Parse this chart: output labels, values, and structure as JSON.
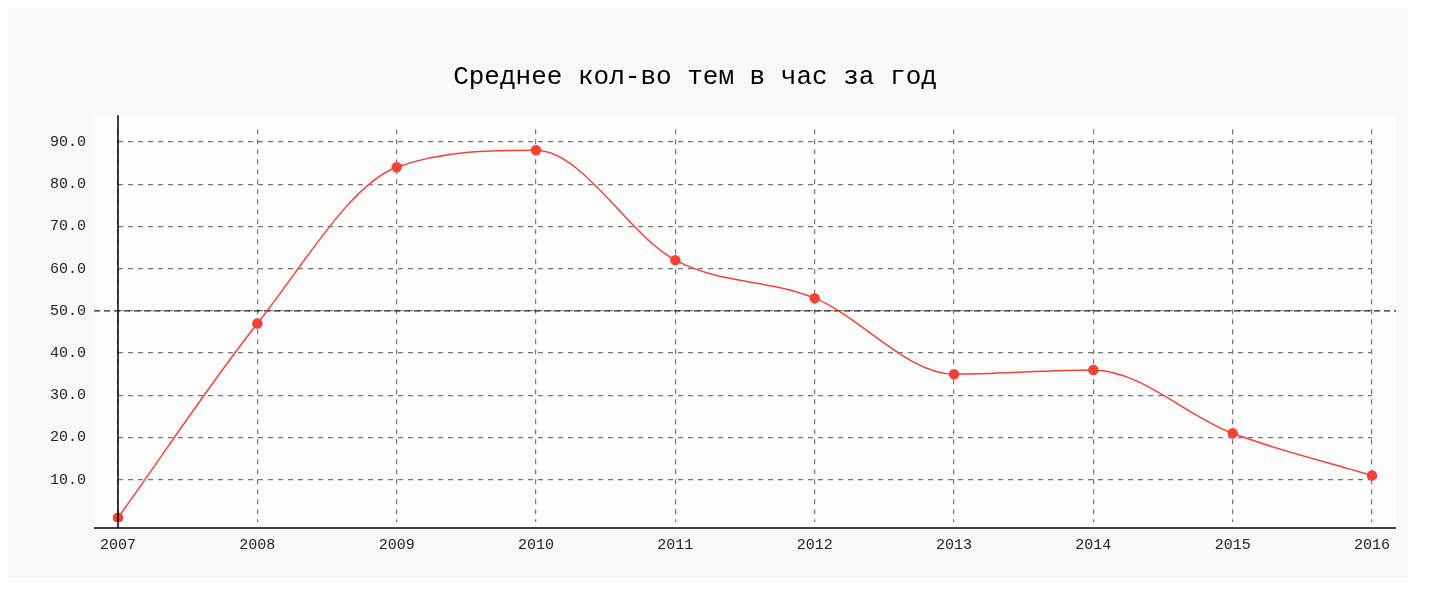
{
  "chart_data": {
    "type": "line",
    "title": "Среднее кол-во тем в час за год",
    "categories": [
      "2007",
      "2008",
      "2009",
      "2010",
      "2011",
      "2012",
      "2013",
      "2014",
      "2015",
      "2016"
    ],
    "series": [
      {
        "color": "#f44336",
        "values": [
          1,
          47,
          84,
          88,
          62,
          53,
          35,
          36,
          21,
          11
        ]
      }
    ],
    "ylim": [
      0,
      93
    ],
    "yticks": [
      {
        "value": 10,
        "label": "10.0"
      },
      {
        "value": 20,
        "label": "20.0"
      },
      {
        "value": 30,
        "label": "30.0"
      },
      {
        "value": 40,
        "label": "40.0"
      },
      {
        "value": 50,
        "label": "50.0"
      },
      {
        "value": 60,
        "label": "60.0"
      },
      {
        "value": 70,
        "label": "70.0"
      },
      {
        "value": 80,
        "label": "80.0"
      },
      {
        "value": 90,
        "label": "90.0"
      }
    ],
    "ref_lines": [
      {
        "axis": "y",
        "value": 50,
        "color": "#222222",
        "line_style": "dashed"
      }
    ],
    "grid": true,
    "legend": false,
    "marker": "circle",
    "line_style": "solid"
  }
}
